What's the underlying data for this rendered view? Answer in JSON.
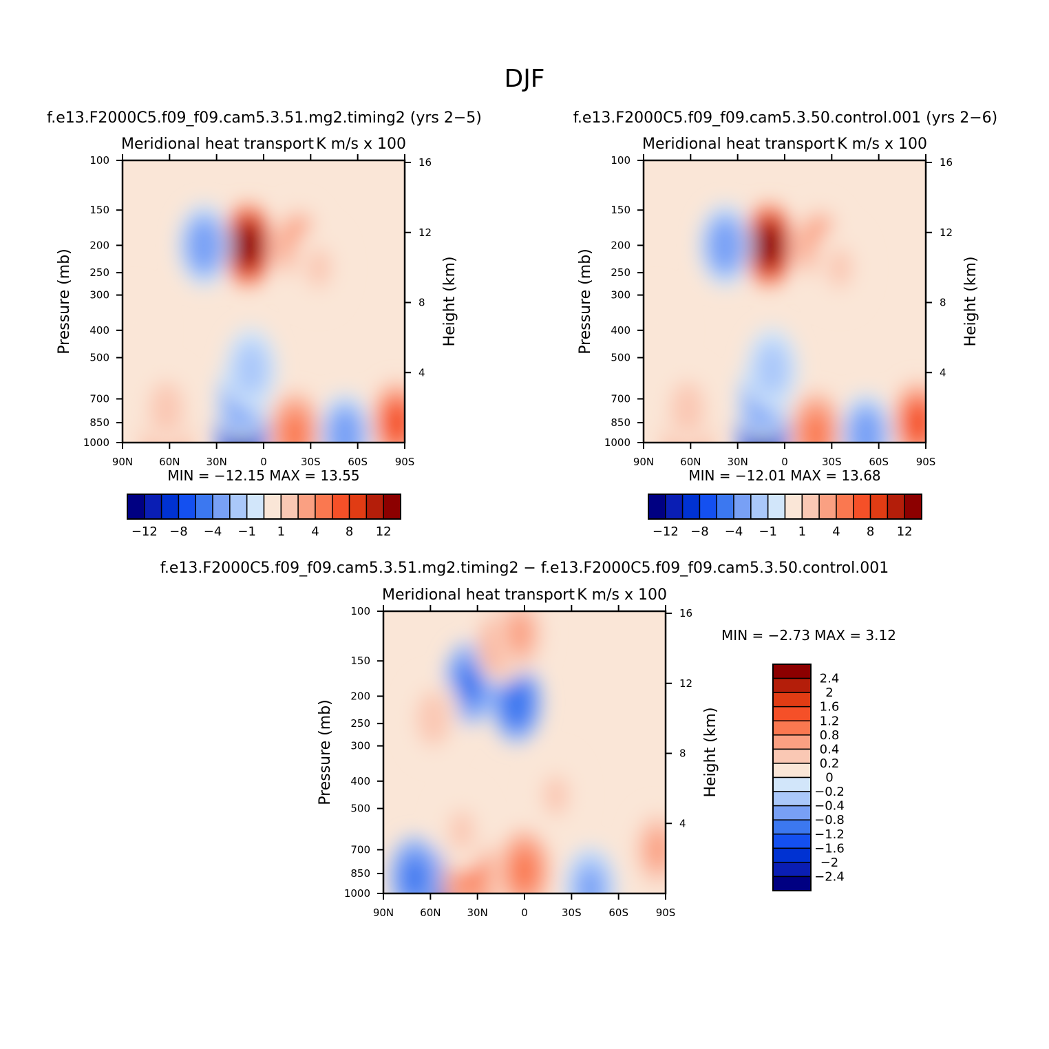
{
  "figure": {
    "title": "DJF"
  },
  "colors": {
    "field": [
      "#000082",
      "#0a1eb4",
      "#0032d2",
      "#1450f0",
      "#3c78f0",
      "#78a0f5",
      "#aac8fa",
      "#d2e6fa",
      "#fae6d7",
      "#fac8b4",
      "#faa082",
      "#fa7850",
      "#f55028",
      "#e13c14",
      "#b41e0a",
      "#8c0000"
    ],
    "diff": [
      "#000082",
      "#0a1eb4",
      "#0032d2",
      "#1450f0",
      "#3c78f0",
      "#78a0f5",
      "#aac8fa",
      "#d2e6fa",
      "#fae6d7",
      "#fac8b4",
      "#faa082",
      "#fa7850",
      "#f55028",
      "#e13c14",
      "#b41e0a",
      "#8c0000"
    ]
  },
  "chart_data": [
    {
      "type": "heatmap",
      "title": "f.e13.F2000C5.f09_f09.cam5.3.51.mg2.timing2 (yrs 2−5)",
      "subtitle_left": "Meridional heat transport",
      "subtitle_right": "K m/s x 100",
      "xlabel": "",
      "ylabel": "Pressure (mb)",
      "y2label": "Height (km)",
      "x_ticks": [
        "90N",
        "60N",
        "30N",
        "0",
        "30S",
        "60S",
        "90S"
      ],
      "y_ticks": [
        "100",
        "150",
        "200",
        "250",
        "300",
        "400",
        "500",
        "700",
        "850",
        "1000"
      ],
      "y_tick_values": [
        100,
        150,
        200,
        250,
        300,
        400,
        500,
        700,
        850,
        1000
      ],
      "y2_ticks": [
        "16",
        "12",
        "8",
        "4"
      ],
      "y2_tick_values": [
        16,
        12,
        8,
        4
      ],
      "y_scale": "log",
      "xlim": [
        90,
        -90
      ],
      "ylim": [
        1000,
        100
      ],
      "min_max_text": "MIN = −12.15   MAX =   13.55",
      "colorbar": {
        "levels": [
          -14,
          -12,
          -10,
          -8,
          -6,
          -4,
          -2,
          -1,
          0,
          1,
          2,
          4,
          6,
          8,
          10,
          12,
          14
        ],
        "labels": [
          "−12",
          "−8",
          "−4",
          "−1",
          "1",
          "4",
          "8",
          "12"
        ]
      },
      "features": [
        {
          "lat": 62,
          "p": 920,
          "v": 4.5
        },
        {
          "lat": 62,
          "p": 760,
          "v": 1.5
        },
        {
          "lat": 14,
          "p": 920,
          "v": -12.15
        },
        {
          "lat": 14,
          "p": 700,
          "v": -3
        },
        {
          "lat": 8,
          "p": 550,
          "v": -1.5
        },
        {
          "lat": 10,
          "p": 200,
          "v": 13.55
        },
        {
          "lat": 38,
          "p": 200,
          "v": -4
        },
        {
          "lat": -20,
          "p": 930,
          "v": 4
        },
        {
          "lat": -22,
          "p": 200,
          "v": 3
        },
        {
          "lat": -35,
          "p": 240,
          "v": 1
        },
        {
          "lat": -52,
          "p": 940,
          "v": -4
        },
        {
          "lat": -85,
          "p": 850,
          "v": 6
        },
        {
          "lat": 82,
          "p": 400,
          "v": 0.6
        }
      ]
    },
    {
      "type": "heatmap",
      "title": "f.e13.F2000C5.f09_f09.cam5.3.50.control.001 (yrs 2−6)",
      "subtitle_left": "Meridional heat transport",
      "subtitle_right": "K m/s x 100",
      "xlabel": "",
      "ylabel": "Pressure (mb)",
      "y2label": "Height (km)",
      "x_ticks": [
        "90N",
        "60N",
        "30N",
        "0",
        "30S",
        "60S",
        "90S"
      ],
      "y_ticks": [
        "100",
        "150",
        "200",
        "250",
        "300",
        "400",
        "500",
        "700",
        "850",
        "1000"
      ],
      "y_tick_values": [
        100,
        150,
        200,
        250,
        300,
        400,
        500,
        700,
        850,
        1000
      ],
      "y2_ticks": [
        "16",
        "12",
        "8",
        "4"
      ],
      "y2_tick_values": [
        16,
        12,
        8,
        4
      ],
      "y_scale": "log",
      "xlim": [
        90,
        -90
      ],
      "ylim": [
        1000,
        100
      ],
      "min_max_text": "MIN = −12.01   MAX =   13.68",
      "colorbar": {
        "levels": [
          -14,
          -12,
          -10,
          -8,
          -6,
          -4,
          -2,
          -1,
          0,
          1,
          2,
          4,
          6,
          8,
          10,
          12,
          14
        ],
        "labels": [
          "−12",
          "−8",
          "−4",
          "−1",
          "1",
          "4",
          "8",
          "12"
        ]
      },
      "features": [
        {
          "lat": 62,
          "p": 920,
          "v": 4.3
        },
        {
          "lat": 62,
          "p": 760,
          "v": 1.5
        },
        {
          "lat": 14,
          "p": 920,
          "v": -12.01
        },
        {
          "lat": 14,
          "p": 700,
          "v": -3
        },
        {
          "lat": 8,
          "p": 550,
          "v": -1.5
        },
        {
          "lat": 10,
          "p": 200,
          "v": 13.68
        },
        {
          "lat": 38,
          "p": 200,
          "v": -4
        },
        {
          "lat": -20,
          "p": 930,
          "v": 4
        },
        {
          "lat": -22,
          "p": 200,
          "v": 3
        },
        {
          "lat": -35,
          "p": 240,
          "v": 1
        },
        {
          "lat": -52,
          "p": 940,
          "v": -4
        },
        {
          "lat": -85,
          "p": 850,
          "v": 6
        },
        {
          "lat": 82,
          "p": 400,
          "v": 0.6
        }
      ]
    },
    {
      "type": "heatmap",
      "title": "f.e13.F2000C5.f09_f09.cam5.3.51.mg2.timing2 − f.e13.F2000C5.f09_f09.cam5.3.50.control.001",
      "subtitle_left": "Meridional heat transport",
      "subtitle_right": "K m/s x 100",
      "xlabel": "",
      "ylabel": "Pressure (mb)",
      "y2label": "Height (km)",
      "x_ticks": [
        "90N",
        "60N",
        "30N",
        "0",
        "30S",
        "60S",
        "90S"
      ],
      "y_ticks": [
        "100",
        "150",
        "200",
        "250",
        "300",
        "400",
        "500",
        "700",
        "850",
        "1000"
      ],
      "y_tick_values": [
        100,
        150,
        200,
        250,
        300,
        400,
        500,
        700,
        850,
        1000
      ],
      "y2_ticks": [
        "16",
        "12",
        "8",
        "4"
      ],
      "y2_tick_values": [
        16,
        12,
        8,
        4
      ],
      "y_scale": "log",
      "xlim": [
        90,
        -90
      ],
      "ylim": [
        1000,
        100
      ],
      "min_max_text": "MIN =    −2.73   MAX =     3.12",
      "colorbar": {
        "levels": [
          -2.8,
          -2.4,
          -2,
          -1.6,
          -1.2,
          -0.8,
          -0.4,
          -0.2,
          0,
          0.2,
          0.4,
          0.8,
          1.2,
          1.6,
          2,
          2.4,
          2.8
        ],
        "labels": [
          "2.4",
          "2",
          "1.6",
          "1.2",
          "0.8",
          "0.4",
          "0.2",
          "0",
          "−0.2",
          "−0.4",
          "−0.8",
          "−1.2",
          "−1.6",
          "−2",
          "−2.4"
        ]
      },
      "features": [
        {
          "lat": 62,
          "p": 960,
          "v": -2.73
        },
        {
          "lat": 70,
          "p": 880,
          "v": -1.0
        },
        {
          "lat": 35,
          "p": 940,
          "v": 3.12
        },
        {
          "lat": 35,
          "p": 820,
          "v": 1.0
        },
        {
          "lat": 0,
          "p": 830,
          "v": 1.0
        },
        {
          "lat": 35,
          "p": 180,
          "v": -1.0
        },
        {
          "lat": 5,
          "p": 210,
          "v": -1.2
        },
        {
          "lat": 15,
          "p": 130,
          "v": 0.6
        },
        {
          "lat": 3,
          "p": 120,
          "v": 0.5
        },
        {
          "lat": 58,
          "p": 240,
          "v": 0.3
        },
        {
          "lat": -85,
          "p": 700,
          "v": 0.4
        },
        {
          "lat": -42,
          "p": 960,
          "v": -0.5
        },
        {
          "lat": -20,
          "p": 450,
          "v": 0.2
        },
        {
          "lat": 40,
          "p": 600,
          "v": 0.2
        }
      ]
    }
  ]
}
